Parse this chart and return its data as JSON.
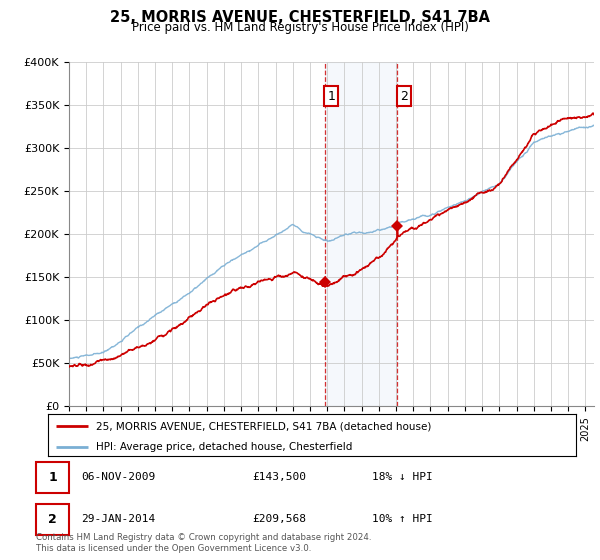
{
  "title": "25, MORRIS AVENUE, CHESTERFIELD, S41 7BA",
  "subtitle": "Price paid vs. HM Land Registry's House Price Index (HPI)",
  "ylabel_ticks": [
    "£0",
    "£50K",
    "£100K",
    "£150K",
    "£200K",
    "£250K",
    "£300K",
    "£350K",
    "£400K"
  ],
  "ylim": [
    0,
    400000
  ],
  "xlim_start": 1995.0,
  "xlim_end": 2025.5,
  "hpi_color": "#7aafd4",
  "property_color": "#cc0000",
  "sale1_date": 2009.85,
  "sale1_price": 143500,
  "sale2_date": 2014.08,
  "sale2_price": 209568,
  "vline_color": "#cc0000",
  "shade_color": "#ddeeff",
  "legend_property": "25, MORRIS AVENUE, CHESTERFIELD, S41 7BA (detached house)",
  "legend_hpi": "HPI: Average price, detached house, Chesterfield",
  "table_rows": [
    {
      "num": "1",
      "date": "06-NOV-2009",
      "price": "£143,500",
      "change": "18% ↓ HPI"
    },
    {
      "num": "2",
      "date": "29-JAN-2014",
      "price": "£209,568",
      "change": "10% ↑ HPI"
    }
  ],
  "footnote": "Contains HM Land Registry data © Crown copyright and database right 2024.\nThis data is licensed under the Open Government Licence v3.0.",
  "background_color": "#ffffff",
  "grid_color": "#cccccc"
}
